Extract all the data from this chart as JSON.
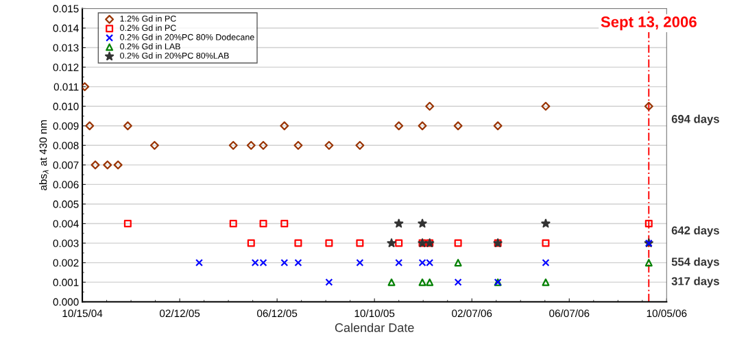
{
  "chart_data": {
    "type": "scatter",
    "xlabel": "Calendar Date",
    "ylabel": "abs$_{λ}$ at 430 nm",
    "xlim": [
      "2004-10-15",
      "2006-10-05"
    ],
    "xticks": [
      {
        "value": "2004-10-15",
        "label": "10/15/04"
      },
      {
        "value": "2005-02-12",
        "label": "02/12/05"
      },
      {
        "value": "2005-06-12",
        "label": "06/12/05"
      },
      {
        "value": "2005-10-10",
        "label": "10/10/05"
      },
      {
        "value": "2006-02-07",
        "label": "02/07/06"
      },
      {
        "value": "2006-06-07",
        "label": "06/07/06"
      },
      {
        "value": "2006-10-05",
        "label": "10/05/06"
      }
    ],
    "ylim": [
      0,
      0.015
    ],
    "yticks": [
      {
        "value": 0,
        "label": "0.000"
      },
      {
        "value": 0.001,
        "label": "0.001"
      },
      {
        "value": 0.002,
        "label": "0.002"
      },
      {
        "value": 0.003,
        "label": "0.003"
      },
      {
        "value": 0.004,
        "label": "0.004"
      },
      {
        "value": 0.005,
        "label": "0.005"
      },
      {
        "value": 0.006,
        "label": "0.006"
      },
      {
        "value": 0.007,
        "label": "0.007"
      },
      {
        "value": 0.008,
        "label": "0.008"
      },
      {
        "value": 0.009,
        "label": "0.009"
      },
      {
        "value": 0.01,
        "label": "0.010"
      },
      {
        "value": 0.011,
        "label": "0.011"
      },
      {
        "value": 0.012,
        "label": "0.012"
      },
      {
        "value": 0.013,
        "label": "0.013"
      },
      {
        "value": 0.014,
        "label": "0.014"
      },
      {
        "value": 0.015,
        "label": "0.015"
      }
    ],
    "grid": "y",
    "legend": "top left",
    "series": [
      {
        "name": "1.2% Gd in PC",
        "color": "#993300",
        "marker": "diamond",
        "x": [
          "2004-10-18",
          "2004-10-24",
          "2004-10-31",
          "2004-11-15",
          "2004-11-28",
          "2004-12-10",
          "2005-01-12",
          "2005-04-19",
          "2005-05-11",
          "2005-05-26",
          "2005-06-21",
          "2005-07-08",
          "2005-08-15",
          "2005-09-22",
          "2005-11-09",
          "2005-12-08",
          "2005-12-17",
          "2006-01-21",
          "2006-03-11",
          "2006-05-09",
          "2006-09-13"
        ],
        "values": [
          0.011,
          0.009,
          0.007,
          0.007,
          0.007,
          0.009,
          0.008,
          0.008,
          0.008,
          0.008,
          0.009,
          0.008,
          0.008,
          0.008,
          0.009,
          0.009,
          0.01,
          0.009,
          0.009,
          0.01,
          0.01
        ]
      },
      {
        "name": "0.2% Gd in PC",
        "color": "#ff0000",
        "marker": "square",
        "x": [
          "2004-12-10",
          "2005-04-19",
          "2005-05-11",
          "2005-05-26",
          "2005-06-21",
          "2005-07-08",
          "2005-08-15",
          "2005-09-22",
          "2005-11-09",
          "2005-12-08",
          "2005-12-17",
          "2006-01-21",
          "2006-03-11",
          "2006-05-09",
          "2006-09-13"
        ],
        "values": [
          0.004,
          0.004,
          0.003,
          0.004,
          0.004,
          0.003,
          0.003,
          0.003,
          0.003,
          0.003,
          0.003,
          0.003,
          0.003,
          0.003,
          0.004
        ]
      },
      {
        "name": "0.2% Gd in 20%PC 80% Dodecane",
        "color": "#0000ff",
        "marker": "cross",
        "x": [
          "2005-03-08",
          "2005-05-16",
          "2005-05-26",
          "2005-06-21",
          "2005-07-08",
          "2005-08-15",
          "2005-09-22",
          "2005-11-09",
          "2005-12-08",
          "2005-12-17",
          "2006-01-21",
          "2006-03-11",
          "2006-05-09",
          "2006-09-13"
        ],
        "values": [
          0.002,
          0.002,
          0.002,
          0.002,
          0.002,
          0.001,
          0.002,
          0.002,
          0.002,
          0.002,
          0.001,
          0.001,
          0.002,
          0.003
        ]
      },
      {
        "name": "0.2% Gd in LAB",
        "color": "#008000",
        "marker": "triangle",
        "x": [
          "2005-10-31",
          "2005-12-08",
          "2005-12-17",
          "2006-01-21",
          "2006-03-11",
          "2006-05-09",
          "2006-09-13"
        ],
        "values": [
          0.001,
          0.001,
          0.001,
          0.002,
          0.001,
          0.001,
          0.002
        ]
      },
      {
        "name": "0.2% Gd in 20%PC 80%LAB",
        "color": "#333333",
        "marker": "star",
        "x": [
          "2005-10-31",
          "2005-11-09",
          "2005-12-08",
          "2005-12-08",
          "2005-12-17",
          "2006-03-11",
          "2006-05-09",
          "2006-09-13"
        ],
        "values": [
          0.003,
          0.004,
          0.004,
          0.003,
          0.003,
          0.003,
          0.004,
          0.003
        ]
      }
    ],
    "ref_lines": [
      {
        "axis": "x",
        "value": "2006-09-13",
        "label": "Sept 13, 2006",
        "color": "#ff0000",
        "line_style": "dashed"
      }
    ],
    "annotations": [
      "694 days",
      "642 days",
      "554 days",
      "317 days"
    ]
  }
}
